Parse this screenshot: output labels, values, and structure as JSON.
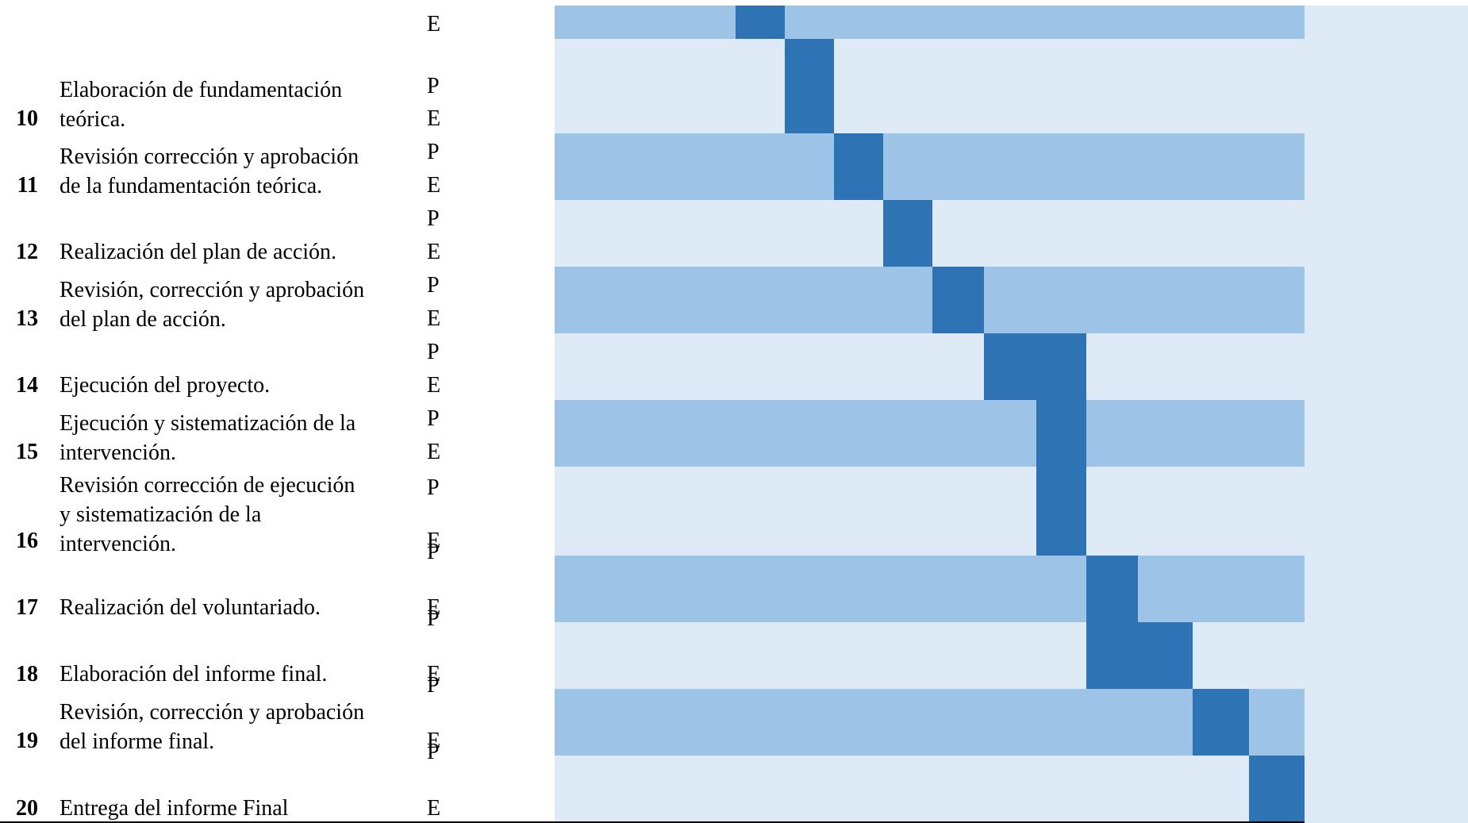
{
  "colors": {
    "stripe_dark": "#9dc3e6",
    "stripe_light": "#deeaf6",
    "scheduled_cell": "#2e74b5"
  },
  "top_partial": {
    "plan_marker": "E"
  },
  "tasks": [
    {
      "number": "10",
      "description": "Elaboración de fundamentación\nteórica.",
      "plan_marker": "P",
      "exec_marker": "E"
    },
    {
      "number": "11",
      "description": "Revisión corrección y aprobación\nde la fundamentación teórica.",
      "plan_marker": "P",
      "exec_marker": "E"
    },
    {
      "number": "12",
      "description": "Realización del plan de acción.",
      "plan_marker": "P",
      "exec_marker": "E"
    },
    {
      "number": "13",
      "description": "Revisión, corrección y aprobación\ndel plan de acción.",
      "plan_marker": "P",
      "exec_marker": "E"
    },
    {
      "number": "14",
      "description": "Ejecución del proyecto.",
      "plan_marker": "P",
      "exec_marker": "E"
    },
    {
      "number": "15",
      "description": "Ejecución y sistematización de la\nintervención.",
      "plan_marker": "P",
      "exec_marker": "E"
    },
    {
      "number": "16",
      "description": "Revisión corrección de ejecución\ny sistematización de la\nintervención.",
      "plan_marker": "P",
      "exec_marker": "E"
    },
    {
      "number": "17",
      "description": "Realización del voluntariado.",
      "plan_marker": "P",
      "exec_marker": "E"
    },
    {
      "number": "18",
      "description": "Elaboración del informe final.",
      "plan_marker": "P",
      "exec_marker": "E"
    },
    {
      "number": "19",
      "description": "Revisión, corrección y aprobación\ndel informe final.",
      "plan_marker": "P",
      "exec_marker": "E"
    },
    {
      "number": "20",
      "description": "Entrega del informe Final",
      "plan_marker": "P",
      "exec_marker": "E"
    }
  ]
}
